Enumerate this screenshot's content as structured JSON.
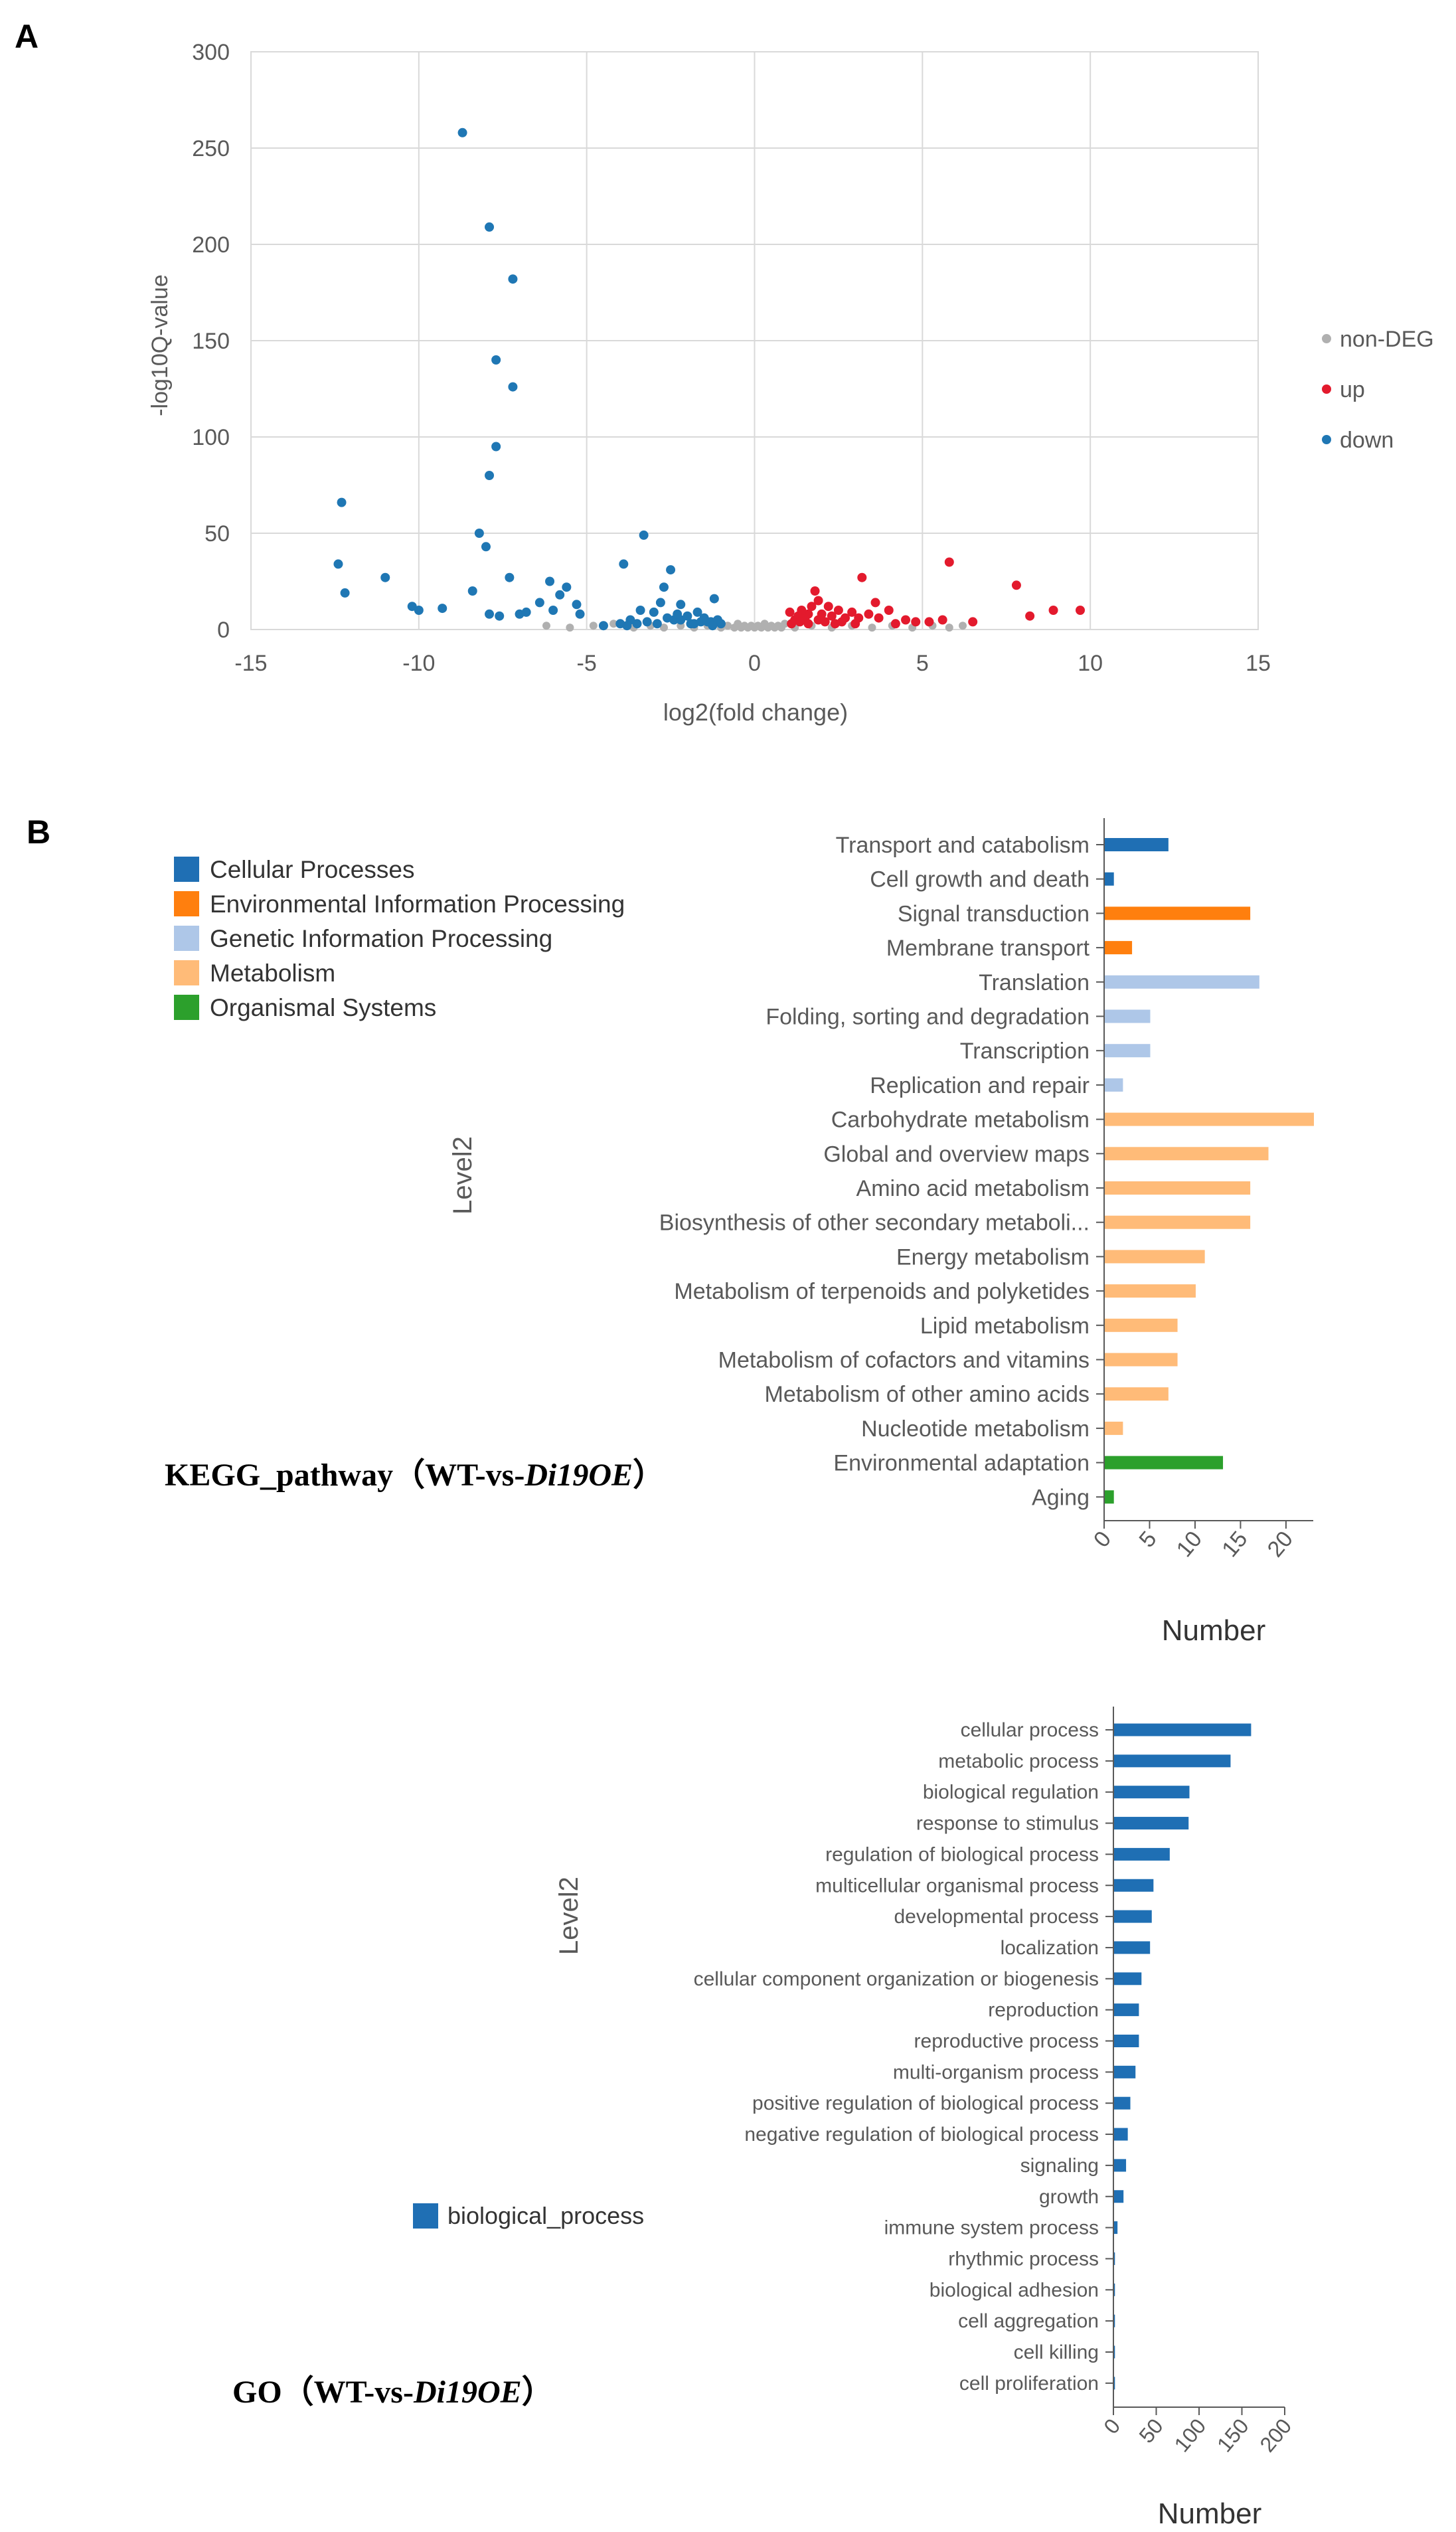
{
  "panel_labels": {
    "a": "A",
    "b": "B"
  },
  "colors": {
    "up": "#e31a2d",
    "down": "#1f77b4",
    "nondeg": "#b0b0b0",
    "cellular": "#1f6fb4",
    "environmental": "#ff7f0e",
    "genetic": "#aec7e8",
    "metabolism": "#ffbb78",
    "organismal": "#2ca02c"
  },
  "chart_data": [
    {
      "type": "scatter",
      "title": "",
      "xlabel": "log2(fold change)",
      "ylabel": "-log10Q-value",
      "xlim": [
        -15,
        15
      ],
      "ylim": [
        0,
        300
      ],
      "xticks": [
        -15,
        -10,
        -5,
        0,
        5,
        10,
        15
      ],
      "yticks": [
        0,
        50,
        100,
        150,
        200,
        250,
        300
      ],
      "grid": true,
      "legend": [
        "non-DEG",
        "up",
        "down"
      ],
      "series": [
        {
          "name": "down",
          "points": [
            [
              -8.7,
              258
            ],
            [
              -7.9,
              209
            ],
            [
              -7.2,
              182
            ],
            [
              -7.7,
              140
            ],
            [
              -7.2,
              126
            ],
            [
              -7.7,
              95
            ],
            [
              -7.9,
              80
            ],
            [
              -12.3,
              66
            ],
            [
              -8.2,
              50
            ],
            [
              -8.0,
              43
            ],
            [
              -12.4,
              34
            ],
            [
              -12.2,
              19
            ],
            [
              -11.0,
              27
            ],
            [
              -10.2,
              12
            ],
            [
              -10.0,
              10
            ],
            [
              -9.3,
              11
            ],
            [
              -8.4,
              20
            ],
            [
              -7.9,
              8
            ],
            [
              -7.6,
              7
            ],
            [
              -7.3,
              27
            ],
            [
              -7.0,
              8
            ],
            [
              -6.8,
              9
            ],
            [
              -6.4,
              14
            ],
            [
              -6.1,
              25
            ],
            [
              -6.0,
              10
            ],
            [
              -5.8,
              18
            ],
            [
              -5.6,
              22
            ],
            [
              -5.3,
              13
            ],
            [
              -5.2,
              8
            ],
            [
              -3.3,
              49
            ],
            [
              -3.9,
              34
            ],
            [
              -2.7,
              22
            ],
            [
              -2.5,
              31
            ],
            [
              -2.2,
              13
            ],
            [
              -3.4,
              10
            ],
            [
              -3.0,
              9
            ],
            [
              -2.8,
              14
            ],
            [
              -2.6,
              6
            ],
            [
              -2.4,
              5
            ],
            [
              -2.2,
              5
            ],
            [
              -2.0,
              7
            ],
            [
              -1.9,
              3
            ],
            [
              -1.7,
              9
            ],
            [
              -1.6,
              4
            ],
            [
              -1.5,
              6
            ],
            [
              -1.4,
              4
            ],
            [
              -1.3,
              4
            ],
            [
              -1.2,
              16
            ],
            [
              -1.1,
              5
            ],
            [
              -1.0,
              3
            ],
            [
              -4.0,
              3
            ],
            [
              -3.7,
              5
            ],
            [
              -3.5,
              3
            ],
            [
              -3.2,
              4
            ],
            [
              -2.9,
              3
            ],
            [
              -4.5,
              2
            ],
            [
              -3.8,
              2
            ],
            [
              -2.3,
              8
            ],
            [
              -1.8,
              3
            ],
            [
              -1.25,
              2
            ]
          ]
        },
        {
          "name": "up",
          "points": [
            [
              5.8,
              35
            ],
            [
              3.2,
              27
            ],
            [
              7.8,
              23
            ],
            [
              9.7,
              10
            ],
            [
              8.9,
              10
            ],
            [
              8.2,
              7
            ],
            [
              6.5,
              4
            ],
            [
              5.6,
              5
            ],
            [
              5.2,
              4
            ],
            [
              4.8,
              4
            ],
            [
              4.5,
              5
            ],
            [
              4.0,
              10
            ],
            [
              3.6,
              14
            ],
            [
              3.4,
              8
            ],
            [
              3.1,
              6
            ],
            [
              2.9,
              9
            ],
            [
              2.7,
              6
            ],
            [
              2.5,
              10
            ],
            [
              2.3,
              7
            ],
            [
              2.2,
              12
            ],
            [
              2.0,
              8
            ],
            [
              1.9,
              15
            ],
            [
              1.8,
              20
            ],
            [
              1.7,
              12
            ],
            [
              1.6,
              8
            ],
            [
              1.5,
              6
            ],
            [
              1.4,
              10
            ],
            [
              1.3,
              7
            ],
            [
              1.2,
              5
            ],
            [
              1.1,
              3
            ],
            [
              1.05,
              9
            ],
            [
              1.6,
              3
            ],
            [
              2.1,
              4
            ],
            [
              2.6,
              4
            ],
            [
              3.0,
              3
            ],
            [
              1.35,
              4
            ],
            [
              1.9,
              5
            ],
            [
              2.4,
              3
            ],
            [
              3.7,
              6
            ],
            [
              4.2,
              3
            ]
          ]
        },
        {
          "name": "non-DEG",
          "points": [
            [
              -4.8,
              2
            ],
            [
              -4.2,
              3
            ],
            [
              -3.6,
              1
            ],
            [
              -3.1,
              2
            ],
            [
              -2.7,
              1
            ],
            [
              -2.2,
              2
            ],
            [
              -1.8,
              1
            ],
            [
              -1.4,
              2
            ],
            [
              -1.0,
              1
            ],
            [
              -0.8,
              2
            ],
            [
              -0.6,
              1
            ],
            [
              -0.5,
              3
            ],
            [
              -0.4,
              1
            ],
            [
              -0.3,
              2
            ],
            [
              -0.2,
              1
            ],
            [
              -0.1,
              2
            ],
            [
              0.0,
              1
            ],
            [
              0.1,
              2
            ],
            [
              0.2,
              1
            ],
            [
              0.3,
              3
            ],
            [
              0.4,
              1
            ],
            [
              0.5,
              2
            ],
            [
              0.6,
              1
            ],
            [
              0.7,
              2
            ],
            [
              0.8,
              1
            ],
            [
              0.9,
              3
            ],
            [
              1.2,
              1
            ],
            [
              1.7,
              2
            ],
            [
              2.3,
              1
            ],
            [
              2.9,
              2
            ],
            [
              3.5,
              1
            ],
            [
              4.1,
              2
            ],
            [
              4.7,
              1
            ],
            [
              5.3,
              2
            ],
            [
              5.8,
              1
            ],
            [
              6.2,
              2
            ],
            [
              -5.5,
              1
            ],
            [
              -6.2,
              2
            ]
          ]
        }
      ]
    },
    {
      "type": "bar",
      "orientation": "horizontal",
      "title": "KEGG_pathway（WT-vs-",
      "title_italic": "Di19OE",
      "title_end": "）",
      "xlabel": "Number",
      "ylabel": "Level2",
      "xlim": [
        0,
        23
      ],
      "xticks": [
        0,
        5,
        10,
        15,
        20
      ],
      "legend": [
        {
          "label": "Cellular Processes",
          "color": "#1f6fb4"
        },
        {
          "label": "Environmental Information Processing",
          "color": "#ff7f0e"
        },
        {
          "label": "Genetic Information Processing",
          "color": "#aec7e8"
        },
        {
          "label": "Metabolism",
          "color": "#ffbb78"
        },
        {
          "label": "Organismal Systems",
          "color": "#2ca02c"
        }
      ],
      "categories": [
        "Transport and catabolism",
        "Cell growth and death",
        "Signal transduction",
        "Membrane transport",
        "Translation",
        "Folding, sorting and degradation",
        "Transcription",
        "Replication and repair",
        "Carbohydrate metabolism",
        "Global and overview maps",
        "Amino acid metabolism",
        "Biosynthesis of other secondary metaboli...",
        "Energy metabolism",
        "Metabolism of terpenoids and polyketides",
        "Lipid metabolism",
        "Metabolism of cofactors and vitamins",
        "Metabolism of other amino acids",
        "Nucleotide metabolism",
        "Environmental adaptation",
        "Aging"
      ],
      "values": [
        7,
        1,
        16,
        3,
        17,
        5,
        5,
        2,
        23,
        18,
        16,
        16,
        11,
        10,
        8,
        8,
        7,
        2,
        13,
        1
      ],
      "groups": [
        "cellular",
        "cellular",
        "environmental",
        "environmental",
        "genetic",
        "genetic",
        "genetic",
        "genetic",
        "metabolism",
        "metabolism",
        "metabolism",
        "metabolism",
        "metabolism",
        "metabolism",
        "metabolism",
        "metabolism",
        "metabolism",
        "metabolism",
        "organismal",
        "organismal"
      ]
    },
    {
      "type": "bar",
      "orientation": "horizontal",
      "title": "GO（WT-vs-",
      "title_italic": "Di19OE",
      "title_end": "）",
      "xlabel": "Number",
      "ylabel": "Level2",
      "xlim": [
        0,
        200
      ],
      "xticks": [
        0,
        50,
        100,
        150,
        200
      ],
      "legend": [
        {
          "label": "biological_process",
          "color": "#1f6fb4"
        }
      ],
      "categories": [
        "cellular process",
        "metabolic process",
        "biological regulation",
        "response to stimulus",
        "regulation of biological process",
        "multicellular organismal process",
        "developmental process",
        "localization",
        "cellular component organization or biogenesis",
        "reproduction",
        "reproductive process",
        "multi-organism process",
        "positive regulation of biological process",
        "negative regulation of biological process",
        "signaling",
        "growth",
        "immune system process",
        "rhythmic process",
        "biological adhesion",
        "cell aggregation",
        "cell killing",
        "cell proliferation"
      ],
      "values": [
        160,
        136,
        88,
        87,
        65,
        46,
        44,
        42,
        32,
        29,
        29,
        25,
        19,
        16,
        14,
        11,
        4,
        1,
        1,
        1,
        1,
        1
      ]
    }
  ]
}
